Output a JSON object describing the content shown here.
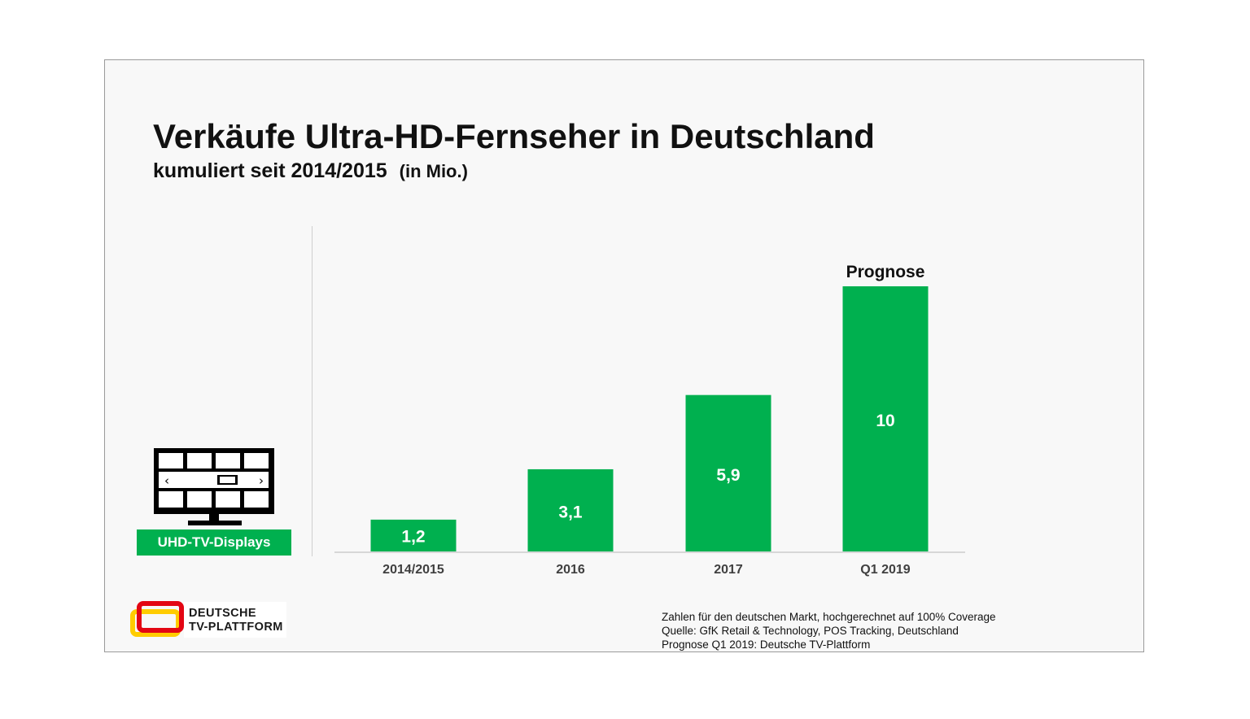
{
  "header": {
    "title": "Verkäufe Ultra-HD-Fernseher in Deutschland",
    "subtitle": "kumuliert seit 2014/2015",
    "unit": "(in Mio.)"
  },
  "legend": {
    "label": "UHD-TV-Displays",
    "icon": "tv-icon"
  },
  "chart_data": {
    "type": "bar",
    "title": "Verkäufe Ultra-HD-Fernseher in Deutschland",
    "subtitle": "kumuliert seit 2014/2015 (in Mio.)",
    "categories": [
      "2014/2015",
      "2016",
      "2017",
      "Q1 2019"
    ],
    "values": [
      1.2,
      3.1,
      5.9,
      10
    ],
    "value_labels": [
      "1,2",
      "3,1",
      "5,9",
      "10"
    ],
    "series": [
      {
        "name": "UHD-TV-Displays",
        "values": [
          1.2,
          3.1,
          5.9,
          10
        ]
      }
    ],
    "annotations": [
      {
        "category": "Q1 2019",
        "text": "Prognose"
      }
    ],
    "xlabel": "",
    "ylabel": "",
    "ylim": [
      0,
      10
    ],
    "grid": false,
    "bar_color": "#00b04f"
  },
  "footnote": {
    "lines": [
      "Zahlen für den deutschen Markt, hochgerechnet auf 100% Coverage",
      "Quelle: GfK Retail & Technology, POS Tracking, Deutschland",
      "Prognose Q1 2019: Deutsche TV-Plattform"
    ]
  },
  "logo": {
    "line1": "DEUTSCHE",
    "line2": "TV-PLATTFORM"
  },
  "colors": {
    "accent": "#00b04f",
    "text": "#111111",
    "logo_red": "#e30613",
    "logo_yellow": "#ffcc00"
  }
}
